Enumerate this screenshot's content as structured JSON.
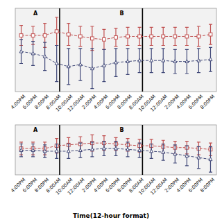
{
  "chart_data": [
    {
      "type": "line",
      "categories": [
        "4:00PM",
        "6:00PM",
        "8:00PM",
        "8:00AM",
        "10:00AM",
        "12:00AM",
        "2:00PM",
        "4:00PM",
        "6:00PM",
        "8:00PM",
        "8:00AM",
        "10:00AM",
        "12:00AM",
        "2:00PM",
        "4:00PM",
        "6:00PM",
        "8:00PM"
      ],
      "series": [
        {
          "color": "#c05050",
          "marker": "square",
          "line_style": "dashed",
          "values": [
            0.78,
            0.78,
            0.78,
            0.82,
            0.79,
            0.77,
            0.75,
            0.74,
            0.76,
            0.77,
            0.77,
            0.77,
            0.77,
            0.77,
            0.77,
            0.77,
            0.79
          ],
          "errors": [
            0.1,
            0.09,
            0.12,
            0.14,
            0.11,
            0.1,
            0.12,
            0.1,
            0.09,
            0.09,
            0.09,
            0.09,
            0.09,
            0.09,
            0.09,
            0.1,
            0.1
          ]
        },
        {
          "color": "#404878",
          "marker": "triangle",
          "line_style": "dashed",
          "values": [
            0.62,
            0.6,
            0.57,
            0.5,
            0.47,
            0.49,
            0.45,
            0.48,
            0.51,
            0.52,
            0.53,
            0.53,
            0.53,
            0.52,
            0.52,
            0.53,
            0.54
          ],
          "errors": [
            0.12,
            0.12,
            0.14,
            0.18,
            0.18,
            0.16,
            0.2,
            0.16,
            0.14,
            0.13,
            0.12,
            0.12,
            0.12,
            0.12,
            0.12,
            0.12,
            0.12
          ]
        }
      ],
      "ylim": [
        0.22,
        1.05
      ],
      "tick_labels": "x",
      "vlines": [
        3.25,
        10.25
      ],
      "annotations": [
        {
          "text": "A",
          "x": 1.2
        },
        {
          "text": "B",
          "x": 8.5
        }
      ]
    },
    {
      "type": "line",
      "categories": [
        "4:00PM",
        "6:00PM",
        "8:00PM",
        "8:00AM",
        "10:00AM",
        "12:00AM",
        "2:00PM",
        "4:00PM",
        "6:00PM",
        "8:00PM",
        "8:00AM",
        "10:00AM",
        "12:00AM",
        "2:00PM",
        "4:00PM",
        "6:00PM",
        "8:00PM"
      ],
      "x_label": "Time(12-hour format)",
      "series": [
        {
          "color": "#c05050",
          "marker": "square",
          "line_style": "dashed",
          "values": [
            0.52,
            0.52,
            0.52,
            0.55,
            0.56,
            0.57,
            0.58,
            0.58,
            0.57,
            0.56,
            0.55,
            0.55,
            0.54,
            0.53,
            0.53,
            0.52,
            0.51
          ],
          "errors": [
            0.07,
            0.07,
            0.07,
            0.08,
            0.08,
            0.08,
            0.09,
            0.08,
            0.07,
            0.07,
            0.07,
            0.07,
            0.07,
            0.07,
            0.07,
            0.07,
            0.07
          ]
        },
        {
          "color": "#404878",
          "marker": "triangle",
          "line_style": "dashed",
          "values": [
            0.5,
            0.5,
            0.49,
            0.49,
            0.49,
            0.5,
            0.51,
            0.52,
            0.52,
            0.51,
            0.5,
            0.49,
            0.48,
            0.46,
            0.44,
            0.42,
            0.4
          ],
          "errors": [
            0.07,
            0.07,
            0.07,
            0.08,
            0.08,
            0.08,
            0.08,
            0.08,
            0.08,
            0.08,
            0.08,
            0.08,
            0.09,
            0.1,
            0.11,
            0.12,
            0.14
          ]
        }
      ],
      "ylim": [
        0.23,
        0.78
      ],
      "tick_labels": "x",
      "vlines": [
        3.25,
        10.25
      ],
      "annotations": [
        {
          "text": "A",
          "x": 1.2
        },
        {
          "text": "B",
          "x": 8.5
        }
      ]
    }
  ]
}
